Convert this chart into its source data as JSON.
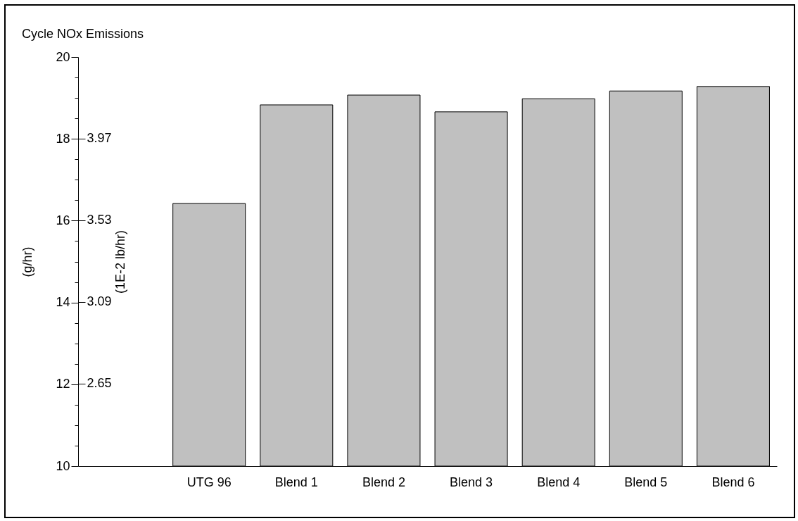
{
  "chart_data": {
    "type": "bar",
    "title": "Cycle NOx Emissions",
    "ylabel": "(g/hr)",
    "y2label": "(1E-2 lb/hr)",
    "categories": [
      null,
      "UTG 96",
      "Blend 1",
      "Blend 2",
      "Blend 3",
      "Blend 4",
      "Blend 5",
      "Blend 6"
    ],
    "values": [
      null,
      16.42,
      18.83,
      19.07,
      18.66,
      18.98,
      19.17,
      19.28
    ],
    "color": "#c0c0c0",
    "ylim": [
      10,
      20
    ],
    "yticks": [
      10,
      {
        "value": 10.5,
        "label": null
      },
      {
        "value": 11,
        "label": null
      },
      {
        "value": 11.5,
        "label": null
      },
      12,
      {
        "value": 12.5,
        "label": null
      },
      {
        "value": 13,
        "label": null
      },
      {
        "value": 13.5,
        "label": null
      },
      14,
      {
        "value": 14.5,
        "label": null
      },
      {
        "value": 15,
        "label": null
      },
      {
        "value": 15.5,
        "label": null
      },
      16,
      {
        "value": 16.5,
        "label": null
      },
      {
        "value": 17,
        "label": null
      },
      {
        "value": 17.5,
        "label": null
      },
      18,
      {
        "value": 18.5,
        "label": null
      },
      {
        "value": 19,
        "label": null
      },
      {
        "value": 19.5,
        "label": null
      },
      20
    ],
    "y2lim": [
      2.2046,
      4.4092
    ],
    "y2ticks": [
      2.65,
      3.09,
      3.53,
      3.97
    ],
    "grid": false
  }
}
